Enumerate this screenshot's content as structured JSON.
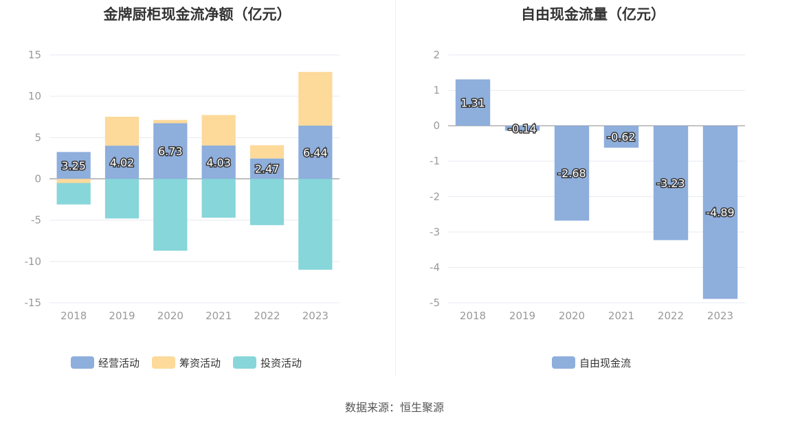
{
  "charts": [
    {
      "title": "金牌厨柜现金流净额（亿元）",
      "chart_data": {
        "type": "bar",
        "stacked": true,
        "categories": [
          "2018",
          "2019",
          "2020",
          "2021",
          "2022",
          "2023"
        ],
        "series": [
          {
            "name": "经营活动",
            "color": "#8eaedc",
            "values": [
              3.25,
              4.02,
              6.73,
              4.03,
              2.47,
              6.44
            ]
          },
          {
            "name": "筹资活动",
            "color": "#fdd99a",
            "values": [
              -0.5,
              3.5,
              0.4,
              3.7,
              1.6,
              6.5
            ]
          },
          {
            "name": "投资活动",
            "color": "#87d6da",
            "values": [
              -2.6,
              -4.8,
              -8.7,
              -4.7,
              -5.6,
              -11.0
            ]
          }
        ],
        "data_labels": [
          "3.25",
          "4.02",
          "6.73",
          "4.03",
          "2.47",
          "6.44"
        ],
        "ylim": [
          -15,
          15
        ],
        "yticks": [
          "15",
          "10",
          "5",
          "0",
          "-5",
          "-10",
          "-15"
        ],
        "grid": true,
        "legend": "bottom"
      }
    },
    {
      "title": "自由现金流量（亿元）",
      "chart_data": {
        "type": "bar",
        "categories": [
          "2018",
          "2019",
          "2020",
          "2021",
          "2022",
          "2023"
        ],
        "series": [
          {
            "name": "自由现金流",
            "color": "#8eaedc",
            "values": [
              1.31,
              -0.14,
              -2.68,
              -0.62,
              -3.23,
              -4.89
            ]
          }
        ],
        "data_labels": [
          "1.31",
          "-0.14",
          "-2.68",
          "-0.62",
          "-3.23",
          "-4.89"
        ],
        "ylim": [
          -5,
          2
        ],
        "yticks": [
          "2",
          "1",
          "0",
          "-1",
          "-2",
          "-3",
          "-4",
          "-5"
        ],
        "grid": true,
        "legend": "bottom"
      }
    }
  ],
  "source": "数据来源：恒生聚源"
}
